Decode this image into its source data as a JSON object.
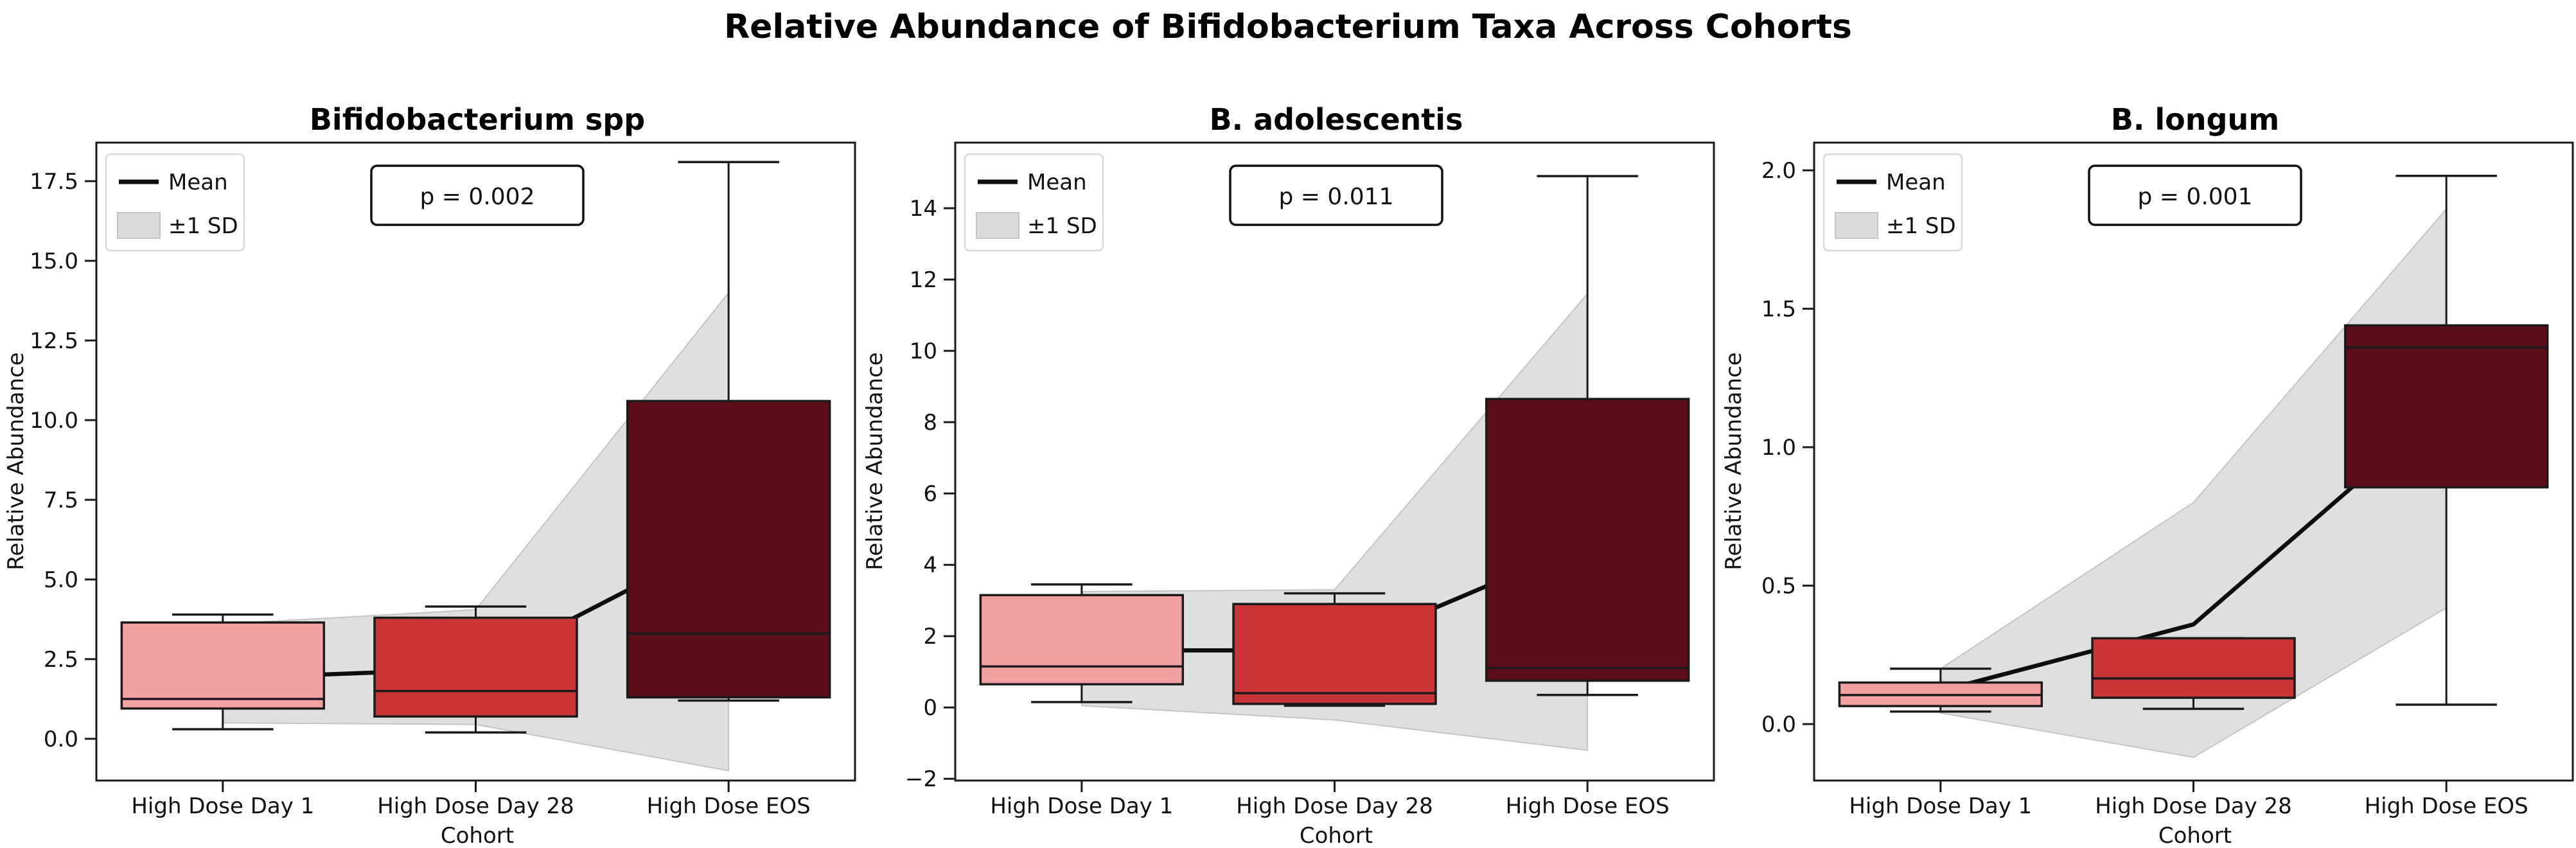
{
  "suptitle": "Relative Abundance of Bifidobacterium Taxa Across Cohorts",
  "legend": {
    "mean_label": "Mean",
    "sd_label": "±1 SD"
  },
  "colors": {
    "box_fills": [
      "#F2A0A0",
      "#C93434",
      "#5B0E17"
    ],
    "box_edge": "#1A1A1A",
    "median_line": "#1A1A1A",
    "mean_line": "#0D0D0D",
    "sd_band_fill": "#DBDBDB",
    "sd_band_edge": "#C4C4C4",
    "axis": "#1A1A1A",
    "background": "#FFFFFF"
  },
  "chart_data": [
    {
      "type": "box",
      "title": "Bifidobacterium spp",
      "p_label": "p = 0.002",
      "xlabel": "Cohort",
      "ylabel": "Relative Abundance",
      "categories": [
        "High Dose Day 1",
        "High Dose Day 28",
        "High Dose EOS"
      ],
      "ylim": [
        -1.31,
        18.71
      ],
      "yticks": [
        0.0,
        2.5,
        5.0,
        7.5,
        10.0,
        12.5,
        15.0,
        17.5
      ],
      "ytick_labels": [
        "0.0",
        "2.5",
        "5.0",
        "7.5",
        "10.0",
        "12.5",
        "15.0",
        "17.5"
      ],
      "boxes": [
        {
          "whislo": 0.3,
          "q1": 0.95,
          "med": 1.25,
          "q3": 3.65,
          "whishi": 3.9
        },
        {
          "whislo": 0.2,
          "q1": 0.7,
          "med": 1.5,
          "q3": 3.8,
          "whishi": 4.15
        },
        {
          "whislo": 1.2,
          "q1": 1.3,
          "med": 3.3,
          "q3": 10.6,
          "whishi": 18.1
        }
      ],
      "mean": [
        1.9,
        2.2,
        6.3
      ],
      "sd_upper": [
        3.6,
        4.05,
        14.0
      ],
      "sd_lower": [
        0.5,
        0.45,
        -1.0
      ]
    },
    {
      "type": "box",
      "title": "B. adolescentis",
      "p_label": "p = 0.011",
      "xlabel": "Cohort",
      "ylabel": "Relative Abundance",
      "categories": [
        "High Dose Day 1",
        "High Dose Day 28",
        "High Dose EOS"
      ],
      "ylim": [
        -2.05,
        15.84
      ],
      "yticks": [
        -2,
        0,
        2,
        4,
        6,
        8,
        10,
        12,
        14
      ],
      "ytick_labels": [
        "−2",
        "0",
        "2",
        "4",
        "6",
        "8",
        "10",
        "12",
        "14"
      ],
      "boxes": [
        {
          "whislo": 0.15,
          "q1": 0.65,
          "med": 1.15,
          "q3": 3.15,
          "whishi": 3.45
        },
        {
          "whislo": 0.05,
          "q1": 0.1,
          "med": 0.4,
          "q3": 2.9,
          "whishi": 3.2
        },
        {
          "whislo": 0.35,
          "q1": 0.75,
          "med": 1.1,
          "q3": 8.65,
          "whishi": 14.9
        }
      ],
      "mean": [
        1.6,
        1.6,
        4.6
      ],
      "sd_upper": [
        3.25,
        3.3,
        11.6
      ],
      "sd_lower": [
        0.05,
        -0.35,
        -1.2
      ]
    },
    {
      "type": "box",
      "title": "B. longum",
      "p_label": "p = 0.001",
      "xlabel": "Cohort",
      "ylabel": "Relative Abundance",
      "categories": [
        "High Dose Day 1",
        "High Dose Day 28",
        "High Dose EOS"
      ],
      "ylim": [
        -0.204,
        2.1
      ],
      "yticks": [
        0.0,
        0.5,
        1.0,
        1.5,
        2.0
      ],
      "ytick_labels": [
        "0.0",
        "0.5",
        "1.0",
        "1.5",
        "2.0"
      ],
      "boxes": [
        {
          "whislo": 0.045,
          "q1": 0.065,
          "med": 0.105,
          "q3": 0.15,
          "whishi": 0.2
        },
        {
          "whislo": 0.055,
          "q1": 0.095,
          "med": 0.165,
          "q3": 0.31,
          "whishi": 0.31
        },
        {
          "whislo": 0.07,
          "q1": 0.855,
          "med": 1.36,
          "q3": 1.44,
          "whishi": 1.98
        }
      ],
      "mean": [
        0.12,
        0.36,
        1.15
      ],
      "sd_upper": [
        0.2,
        0.8,
        1.86
      ],
      "sd_lower": [
        0.04,
        -0.12,
        0.42
      ]
    }
  ]
}
